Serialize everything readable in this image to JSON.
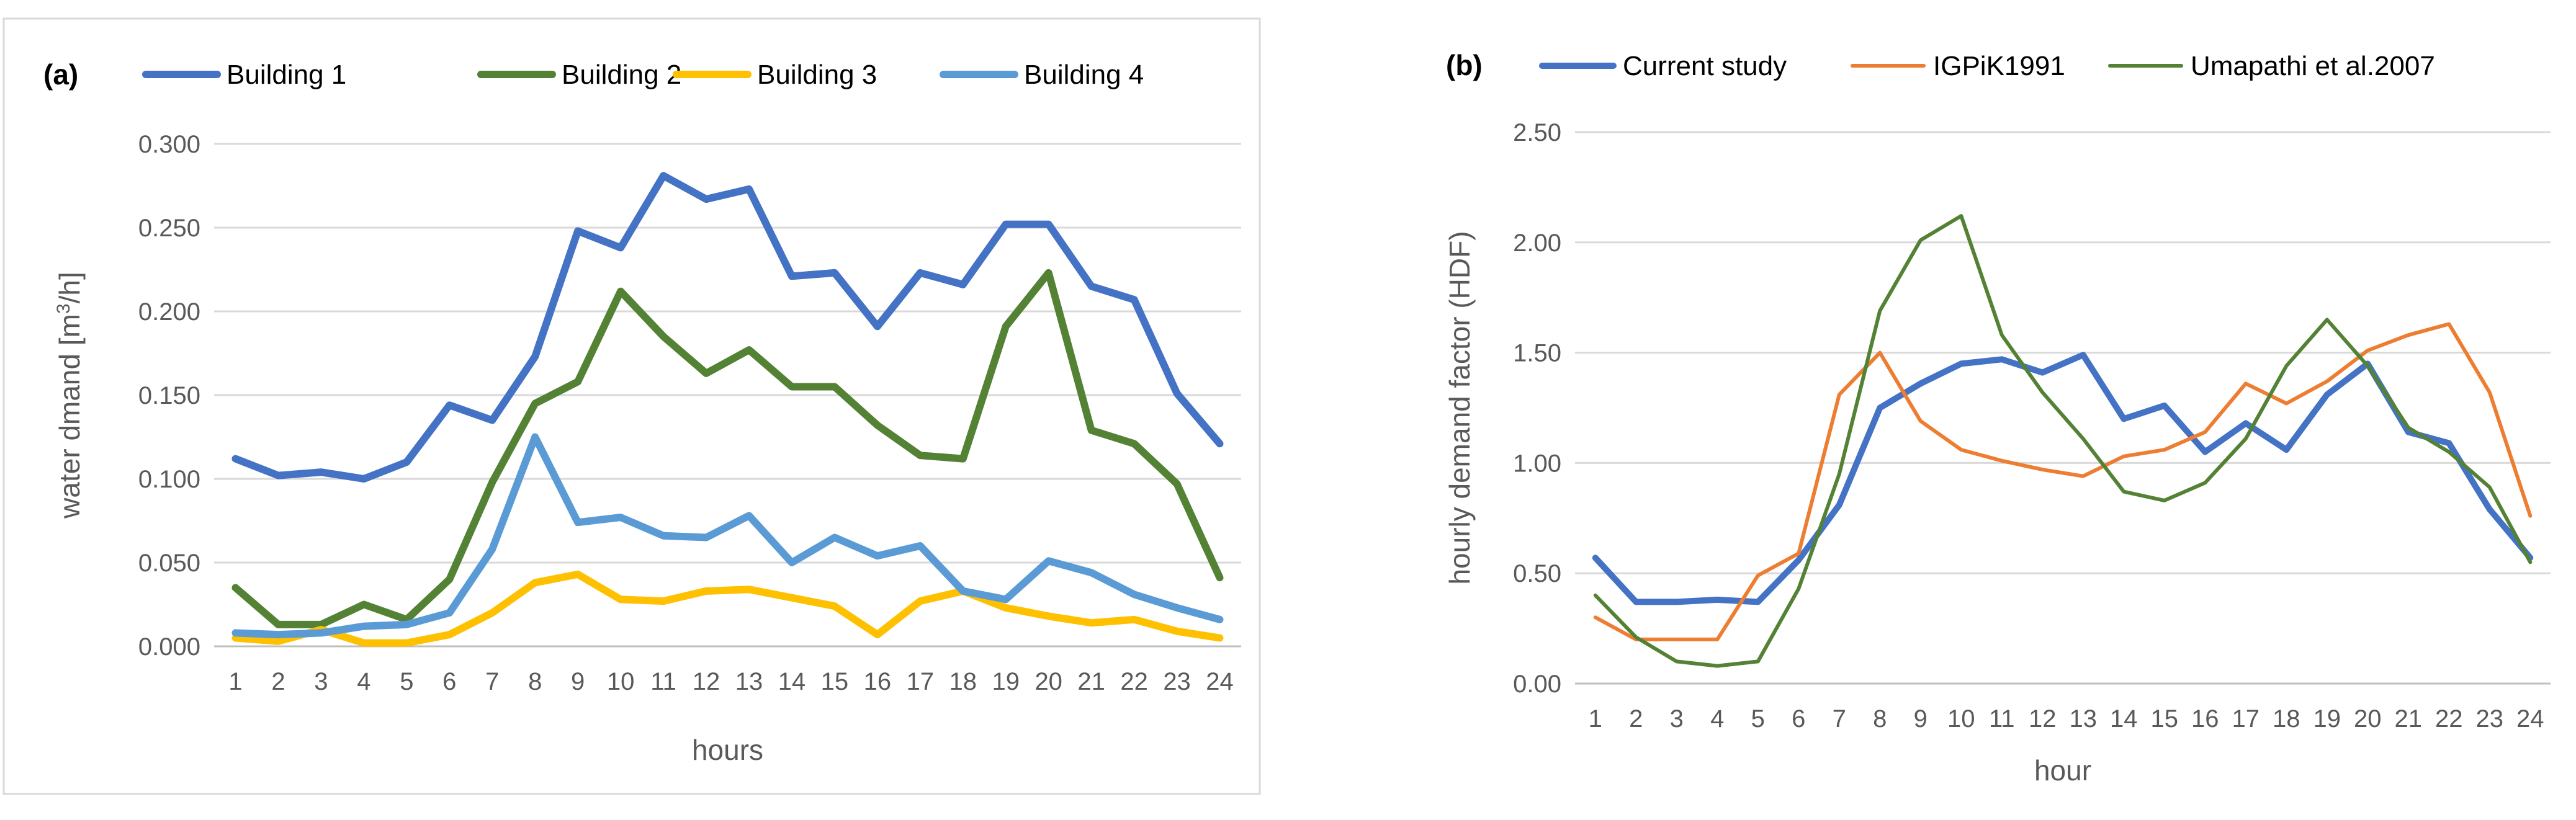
{
  "chart_data": [
    {
      "type": "line",
      "panel_label": "(a)",
      "title": "",
      "xlabel": "hours",
      "ylabel_main": "water dmand [m",
      "ylabel_sup": "3",
      "ylabel_tail": "/h]",
      "ylim": [
        0,
        0.3
      ],
      "yticks": [
        0,
        0.05,
        0.1,
        0.15,
        0.2,
        0.25,
        0.3
      ],
      "ytick_labels": [
        "0.000",
        "0.050",
        "0.100",
        "0.150",
        "0.200",
        "0.250",
        "0.300"
      ],
      "categories": [
        "1",
        "2",
        "3",
        "4",
        "5",
        "6",
        "7",
        "8",
        "9",
        "10",
        "11",
        "12",
        "13",
        "14",
        "15",
        "16",
        "17",
        "18",
        "19",
        "20",
        "21",
        "22",
        "23",
        "24"
      ],
      "grid": true,
      "bordered": true,
      "legend_position": "top",
      "series": [
        {
          "name": "Building 1",
          "color": "#4472C4",
          "values": [
            0.112,
            0.102,
            0.104,
            0.1,
            0.11,
            0.144,
            0.135,
            0.173,
            0.248,
            0.238,
            0.281,
            0.267,
            0.273,
            0.221,
            0.223,
            0.191,
            0.223,
            0.216,
            0.252,
            0.252,
            0.215,
            0.207,
            0.151,
            0.121
          ]
        },
        {
          "name": "Building 2",
          "color": "#548235",
          "values": [
            0.035,
            0.013,
            0.013,
            0.025,
            0.016,
            0.04,
            0.098,
            0.145,
            0.158,
            0.212,
            0.185,
            0.163,
            0.177,
            0.155,
            0.155,
            0.132,
            0.114,
            0.112,
            0.191,
            0.223,
            0.129,
            0.121,
            0.097,
            0.041
          ]
        },
        {
          "name": "Building 3",
          "color": "#FFC000",
          "values": [
            0.005,
            0.003,
            0.01,
            0.002,
            0.002,
            0.007,
            0.02,
            0.038,
            0.043,
            0.028,
            0.027,
            0.033,
            0.034,
            0.029,
            0.024,
            0.007,
            0.027,
            0.033,
            0.023,
            0.018,
            0.014,
            0.016,
            0.009,
            0.005
          ]
        },
        {
          "name": "Building 4",
          "color": "#5B9BD5",
          "values": [
            0.008,
            0.007,
            0.008,
            0.012,
            0.013,
            0.02,
            0.058,
            0.125,
            0.074,
            0.077,
            0.066,
            0.065,
            0.078,
            0.05,
            0.065,
            0.054,
            0.06,
            0.033,
            0.028,
            0.051,
            0.044,
            0.031,
            0.023,
            0.016
          ]
        }
      ]
    },
    {
      "type": "line",
      "panel_label": "(b)",
      "title": "",
      "xlabel": "hour",
      "ylabel": "hourly demand factor (HDF)",
      "ylim": [
        0,
        2.5
      ],
      "yticks": [
        0,
        0.5,
        1,
        1.5,
        2,
        2.5
      ],
      "ytick_labels": [
        "0.00",
        "0.50",
        "1.00",
        "1.50",
        "2.00",
        "2.50"
      ],
      "categories": [
        "1",
        "2",
        "3",
        "4",
        "5",
        "6",
        "7",
        "8",
        "9",
        "10",
        "11",
        "12",
        "13",
        "14",
        "15",
        "16",
        "17",
        "18",
        "19",
        "20",
        "21",
        "22",
        "23",
        "24"
      ],
      "grid": true,
      "bordered": false,
      "legend_position": "top",
      "series": [
        {
          "name": "Current study",
          "color": "#4472C4",
          "values": [
            0.57,
            0.37,
            0.37,
            0.38,
            0.37,
            0.56,
            0.81,
            1.25,
            1.36,
            1.45,
            1.47,
            1.41,
            1.49,
            1.2,
            1.26,
            1.05,
            1.18,
            1.06,
            1.31,
            1.45,
            1.14,
            1.09,
            0.79,
            0.57
          ]
        },
        {
          "name": "IGPiK1991",
          "color": "#ED7D31",
          "values": [
            0.3,
            0.2,
            0.2,
            0.2,
            0.49,
            0.59,
            1.31,
            1.5,
            1.19,
            1.06,
            1.01,
            0.97,
            0.94,
            1.03,
            1.06,
            1.14,
            1.36,
            1.27,
            1.37,
            1.51,
            1.58,
            1.63,
            1.32,
            0.76
          ]
        },
        {
          "name": "Umapathi et al.2007",
          "color": "#548235",
          "values": [
            0.4,
            0.21,
            0.1,
            0.08,
            0.1,
            0.43,
            0.95,
            1.69,
            2.01,
            2.12,
            1.58,
            1.32,
            1.11,
            0.87,
            0.83,
            0.91,
            1.11,
            1.44,
            1.65,
            1.44,
            1.16,
            1.05,
            0.89,
            0.55
          ]
        }
      ]
    }
  ]
}
